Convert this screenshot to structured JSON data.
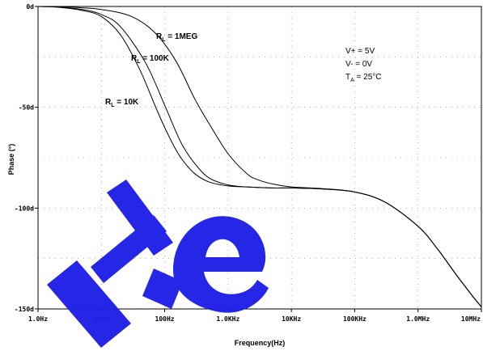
{
  "chart_data": {
    "type": "line",
    "x_scale": "log",
    "xlabel": "Frequency(Hz)",
    "ylabel": "Phase (°)",
    "xlim": [
      1,
      10000000
    ],
    "ylim": [
      -150,
      0
    ],
    "x_ticks": [
      {
        "value": 1,
        "label": "1.0Hz"
      },
      {
        "value": 10,
        "label": "10Hz"
      },
      {
        "value": 100,
        "label": "100Hz"
      },
      {
        "value": 1000,
        "label": "1.0KHz"
      },
      {
        "value": 10000,
        "label": "10KHz"
      },
      {
        "value": 100000,
        "label": "100KHz"
      },
      {
        "value": 1000000,
        "label": "1.0MHz"
      },
      {
        "value": 10000000,
        "label": "10MHz"
      }
    ],
    "y_ticks": [
      {
        "value": 0,
        "label": "0d"
      },
      {
        "value": -50,
        "label": "-50d"
      },
      {
        "value": -100,
        "label": "-100d"
      },
      {
        "value": -150,
        "label": "-150d"
      }
    ],
    "grid": true,
    "series": [
      {
        "name": "RL = 10K",
        "x": [
          1,
          2,
          5,
          10,
          20,
          40,
          70,
          100,
          150,
          200,
          300,
          500,
          1000,
          2000,
          5000,
          10000,
          30000,
          100000,
          300000,
          1000000,
          2000000,
          4000000,
          7000000,
          10000000
        ],
        "y": [
          0,
          -0.3,
          -2,
          -5,
          -14,
          -31,
          -49,
          -60,
          -71,
          -77,
          -83,
          -87,
          -89,
          -89.5,
          -90,
          -90,
          -90.5,
          -92,
          -97,
          -109,
          -120,
          -133,
          -143,
          -149
        ]
      },
      {
        "name": "RL = 100K",
        "x": [
          1,
          2,
          5,
          10,
          20,
          50,
          100,
          150,
          200,
          300,
          500,
          1000,
          2000,
          5000,
          10000,
          30000,
          100000,
          300000,
          1000000,
          2000000,
          4000000,
          7000000,
          10000000
        ],
        "y": [
          0,
          -0.3,
          -1.5,
          -4,
          -10,
          -28,
          -49,
          -62,
          -70,
          -78,
          -85,
          -88.5,
          -89.5,
          -90,
          -90,
          -90.5,
          -92,
          -97,
          -109,
          -120,
          -133,
          -143,
          -149
        ]
      },
      {
        "name": "RL = 1MEG",
        "x": [
          1,
          3,
          10,
          30,
          70,
          150,
          300,
          500,
          1000,
          2000,
          3000,
          5000,
          10000,
          30000,
          100000,
          300000,
          1000000,
          2000000,
          4000000,
          7000000,
          10000000
        ],
        "y": [
          0,
          -0.3,
          -1.5,
          -5,
          -13,
          -27,
          -46,
          -58,
          -73,
          -83,
          -86,
          -88,
          -89.5,
          -90.3,
          -92,
          -97,
          -109,
          -120,
          -133,
          -143,
          -149
        ]
      }
    ],
    "annotations": {
      "labels": [
        {
          "main": "R",
          "sub": "L",
          "rest": " = 1MEG"
        },
        {
          "main": "R",
          "sub": "L",
          "rest": " = 100K"
        },
        {
          "main": "R",
          "sub": "L",
          "rest": " = 10K"
        }
      ],
      "conditions": [
        {
          "main": "V+ = 5V"
        },
        {
          "main": "V- = 0V"
        },
        {
          "main": "T",
          "sub": "A",
          "rest": " = 25°C"
        }
      ]
    },
    "colors": {
      "curve": "#000000",
      "grid": "#7f7f7f",
      "watermark": "#1f1fe6"
    }
  }
}
